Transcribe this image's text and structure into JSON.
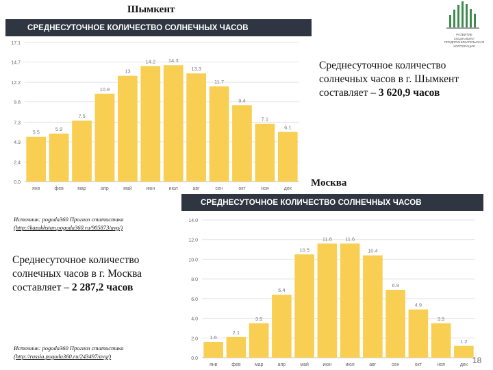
{
  "logo": {
    "caption_lines": [
      "РАЗВИТИЕ",
      "СОЦИАЛЬНО-",
      "ПРЕДПРИНИМАТЕЛЬСКАЯ",
      "КОРПОРАЦИЯ"
    ],
    "colors": {
      "green": "#3f8b4f",
      "gray": "#9a9a9a"
    }
  },
  "shymkent": {
    "city_title": "Шымкент",
    "description_prefix": "Среднесуточное количество солнечных часов в г. Шымкент составляет – ",
    "description_value": "3 620,9 часов"
  },
  "moscow": {
    "city_title": "Москва",
    "description_prefix": "Среднесуточное количество солнечных часов в г. Москва составляет – ",
    "description_value": "2 287,2 часов",
    "source_label": "Источник: pogoda360 Прогноз статистика",
    "source_url": "(http://russia.pogoda360.ru/243497/avg/)"
  },
  "shymkent_source": {
    "source_label": "Источник: pogoda360 Прогноз статистика",
    "source_url": "(http://kazakhstan.pogoda360.ru/905873/avg/)"
  },
  "page_number": "18",
  "chart_data": [
    {
      "type": "bar",
      "title": "СРЕДНЕСУТОЧНОЕ КОЛИЧЕСТВО СОЛНЕЧНЫХ ЧАСОВ",
      "categories": [
        "янв",
        "фев",
        "мар",
        "апр",
        "май",
        "июн",
        "июл",
        "авг",
        "сен",
        "окт",
        "ноя",
        "дек"
      ],
      "values": [
        5.5,
        5.9,
        7.5,
        10.8,
        13,
        14.2,
        14.3,
        13.3,
        11.7,
        9.4,
        7.1,
        6.1
      ],
      "value_labels": [
        "5.5",
        "5.9",
        "7.5",
        "10.8",
        "13",
        "14.2",
        "14.3",
        "13.3",
        "11.7",
        "9.4",
        "7.1",
        "6.1"
      ],
      "yticks": [
        "0.0",
        "2.4",
        "4.9",
        "7.3",
        "9.8",
        "12.2",
        "14.7",
        "17.1"
      ],
      "ylim": [
        0,
        17.1
      ],
      "grid": true,
      "bar_color": "#f8cf52",
      "header_color": "#2f3642"
    },
    {
      "type": "bar",
      "title": "СРЕДНЕСУТОЧНОЕ КОЛИЧЕСТВО СОЛНЕЧНЫХ ЧАСОВ",
      "categories": [
        "янв",
        "фев",
        "мар",
        "апр",
        "май",
        "июн",
        "июл",
        "авг",
        "сен",
        "окт",
        "ноя",
        "дек"
      ],
      "values": [
        1.6,
        2.1,
        3.5,
        6.4,
        10.5,
        11.6,
        11.6,
        10.4,
        6.9,
        4.9,
        3.5,
        1.2
      ],
      "value_labels": [
        "1.6",
        "2.1",
        "3.5",
        "6.4",
        "10.5",
        "11.6",
        "11.6",
        "10.4",
        "6.9",
        "4.9",
        "3.5",
        "1.2"
      ],
      "yticks": [
        "0.0",
        "2.0",
        "4.0",
        "6.0",
        "8.0",
        "10.0",
        "12.0",
        "14.0"
      ],
      "ylim": [
        0,
        14
      ],
      "grid": true,
      "bar_color": "#f8cf52",
      "header_color": "#2f3642"
    }
  ]
}
